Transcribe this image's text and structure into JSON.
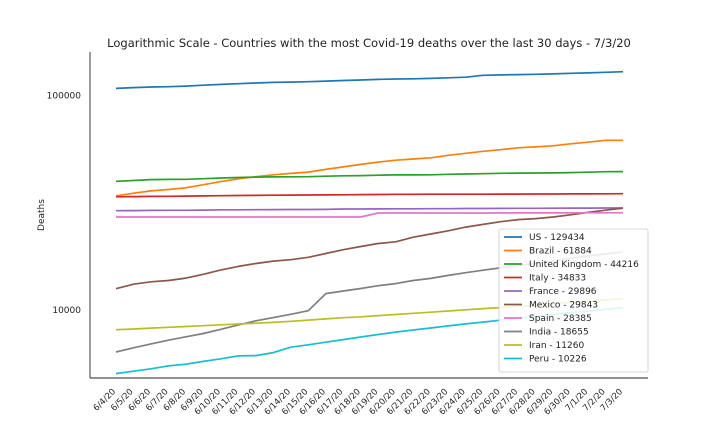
{
  "chart_data": {
    "type": "line",
    "title": "Logarithmic Scale - Countries with the most Covid-19 deaths over the last 30 days - 7/3/20",
    "ylabel": "Deaths",
    "xlabel": "",
    "yscale": "log",
    "ylim": [
      4800,
      160000
    ],
    "yticks": [
      10000,
      100000
    ],
    "ytick_labels": [
      "10000",
      "100000"
    ],
    "grid": false,
    "legend_position": "lower-right",
    "categories": [
      "6/4/20",
      "6/5/20",
      "6/6/20",
      "6/7/20",
      "6/8/20",
      "6/9/20",
      "6/10/20",
      "6/11/20",
      "6/12/20",
      "6/13/20",
      "6/14/20",
      "6/15/20",
      "6/16/20",
      "6/17/20",
      "6/18/20",
      "6/19/20",
      "6/20/20",
      "6/21/20",
      "6/22/20",
      "6/23/20",
      "6/24/20",
      "6/25/20",
      "6/26/20",
      "6/27/20",
      "6/28/20",
      "6/29/20",
      "6/30/20",
      "7/1/20",
      "7/2/20",
      "7/3/20"
    ],
    "series": [
      {
        "name": "US - 129434",
        "color": "#1f77b4",
        "values": [
          108211,
          109142,
          109802,
          110174,
          110925,
          111920,
          112934,
          113815,
          114688,
          115396,
          115729,
          116184,
          117002,
          117756,
          118445,
          119113,
          119719,
          119989,
          120402,
          121224,
          121993,
          124473,
          125003,
          125526,
          125825,
          126396,
          127203,
          127844,
          128619,
          129434
        ]
      },
      {
        "name": "Brazil - 61884",
        "color": "#ff7f0e",
        "values": [
          34021,
          35026,
          35930,
          36455,
          37134,
          38406,
          39680,
          40919,
          41828,
          42720,
          43332,
          43959,
          45241,
          46510,
          47748,
          48954,
          49976,
          50617,
          51271,
          52645,
          53830,
          54971,
          55961,
          57070,
          57622,
          58314,
          59594,
          60632,
          61884,
          61884
        ]
      },
      {
        "name": "United Kingdom - 44216",
        "color": "#2ca02c",
        "values": [
          39811,
          40171,
          40548,
          40625,
          40680,
          40968,
          41279,
          41481,
          41662,
          41747,
          41783,
          41821,
          42054,
          42238,
          42346,
          42520,
          42648,
          42679,
          42717,
          42938,
          43082,
          43230,
          43414,
          43514,
          43550,
          43575,
          43730,
          43906,
          44131,
          44216
        ]
      },
      {
        "name": "Italy - 34833",
        "color": "#d62728",
        "values": [
          33689,
          33774,
          33846,
          33899,
          33964,
          34043,
          34114,
          34167,
          34223,
          34301,
          34345,
          34371,
          34405,
          34448,
          34514,
          34561,
          34610,
          34634,
          34657,
          34675,
          34644,
          34678,
          34708,
          34716,
          34738,
          34744,
          34767,
          34788,
          34818,
          34833
        ]
      },
      {
        "name": "France - 29896",
        "color": "#9467bd",
        "values": [
          29021,
          29065,
          29111,
          29145,
          29158,
          29209,
          29296,
          29322,
          29349,
          29374,
          29398,
          29407,
          29436,
          29547,
          29575,
          29603,
          29617,
          29633,
          29640,
          29663,
          29720,
          29731,
          29752,
          29778,
          29781,
          29813,
          29843,
          29861,
          29875,
          29896
        ]
      },
      {
        "name": "Mexico - 29843",
        "color": "#8c564b",
        "values": [
          12545,
          13170,
          13511,
          13699,
          14053,
          14649,
          15357,
          15944,
          16448,
          16872,
          17141,
          17580,
          18310,
          19080,
          19747,
          20394,
          20781,
          21825,
          22584,
          23377,
          24324,
          25060,
          25779,
          26381,
          26648,
          27121,
          27769,
          28510,
          29189,
          29843
        ]
      },
      {
        "name": "Spain - 28385",
        "color": "#e377c2",
        "values": [
          27133,
          27133,
          27134,
          27135,
          27136,
          27136,
          27136,
          27136,
          27136,
          27136,
          27136,
          27136,
          27136,
          27136,
          27136,
          28315,
          28315,
          28322,
          28324,
          28325,
          28327,
          28330,
          28338,
          28341,
          28343,
          28346,
          28355,
          28363,
          28368,
          28385
        ]
      },
      {
        "name": "India - 18655",
        "color": "#7f7f7f",
        "values": [
          6348,
          6642,
          6929,
          7207,
          7473,
          7745,
          8102,
          8498,
          8884,
          9195,
          9520,
          9900,
          11903,
          12237,
          12573,
          12948,
          13254,
          13699,
          14011,
          14476,
          14894,
          15301,
          15685,
          16095,
          16475,
          16893,
          17400,
          17834,
          18213,
          18655
        ]
      },
      {
        "name": "Iran - 11260",
        "color": "#bcbd22",
        "values": [
          8071,
          8134,
          8209,
          8281,
          8351,
          8425,
          8506,
          8584,
          8659,
          8730,
          8837,
          8950,
          9065,
          9185,
          9272,
          9392,
          9507,
          9623,
          9742,
          9863,
          9996,
          10130,
          10239,
          10364,
          10508,
          10670,
          10817,
          10958,
          11106,
          11260
        ]
      },
      {
        "name": "Peru - 10226",
        "color": "#17becf",
        "values": [
          5031,
          5162,
          5301,
          5465,
          5571,
          5738,
          5903,
          6088,
          6109,
          6308,
          6688,
          6860,
          7056,
          7257,
          7461,
          7660,
          7861,
          8045,
          8223,
          8404,
          8586,
          8761,
          8939,
          9135,
          9317,
          9504,
          9677,
          9860,
          10045,
          10226
        ]
      }
    ]
  }
}
